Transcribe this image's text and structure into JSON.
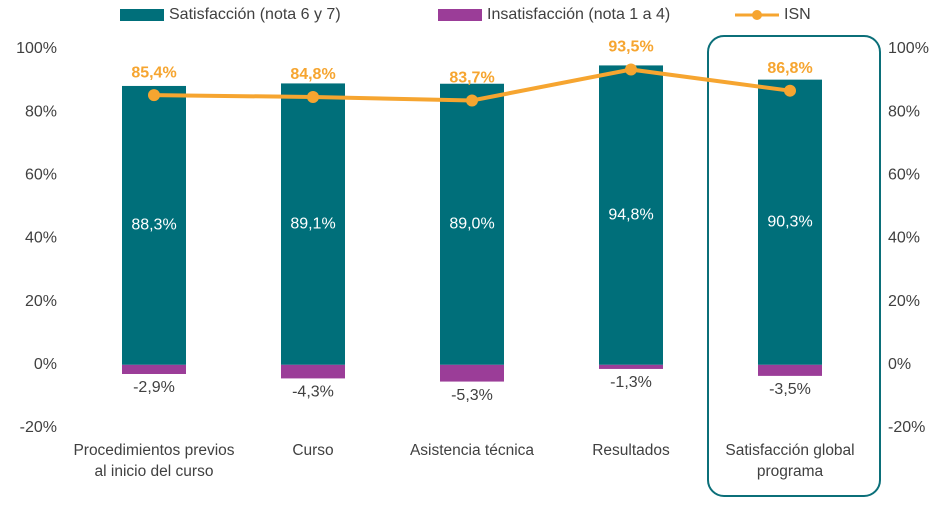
{
  "chart_data": {
    "type": "bar",
    "categories": [
      "Procedimientos previos al inicio del curso",
      "Curso",
      "Asistencia técnica",
      "Resultados",
      "Satisfacción global programa"
    ],
    "series": [
      {
        "name": "Satisfacción (nota 6 y 7)",
        "color": "#006f7a",
        "values": [
          88.3,
          89.1,
          89.0,
          94.8,
          90.3
        ],
        "value_labels": [
          "88,3%",
          "89,1%",
          "89,0%",
          "94,8%",
          "90,3%"
        ]
      },
      {
        "name": "Insatisfacción (nota 1 a 4)",
        "color": "#9b3d98",
        "values": [
          -2.9,
          -4.3,
          -5.3,
          -1.3,
          -3.5
        ],
        "value_labels": [
          "-2,9%",
          "-4,3%",
          "-5,3%",
          "-1,3%",
          "-3,5%"
        ]
      },
      {
        "name": "ISN",
        "type": "line",
        "axis": "y2",
        "color": "#f6a530",
        "values": [
          85.4,
          84.8,
          83.7,
          93.5,
          86.8
        ],
        "value_labels": [
          "85,4%",
          "84,8%",
          "83,7%",
          "93,5%",
          "86,8%"
        ]
      }
    ],
    "ylim": [
      -20,
      100
    ],
    "yticks": [
      {
        "value": -20,
        "label": "-20%"
      },
      {
        "value": 0,
        "label": "0%"
      },
      {
        "value": 20,
        "label": "20%"
      },
      {
        "value": 40,
        "label": "40%"
      },
      {
        "value": 60,
        "label": "60%"
      },
      {
        "value": 80,
        "label": "80%"
      },
      {
        "value": 100,
        "label": "100%"
      }
    ],
    "y2lim": [
      -20,
      100
    ],
    "y2ticks": [
      {
        "value": -20,
        "label": "-20%"
      },
      {
        "value": 0,
        "label": "0%"
      },
      {
        "value": 20,
        "label": "20%"
      },
      {
        "value": 40,
        "label": "40%"
      },
      {
        "value": 60,
        "label": "60%"
      },
      {
        "value": 80,
        "label": "80%"
      },
      {
        "value": 100,
        "label": "100%"
      }
    ],
    "grid": false,
    "legend": "top"
  }
}
